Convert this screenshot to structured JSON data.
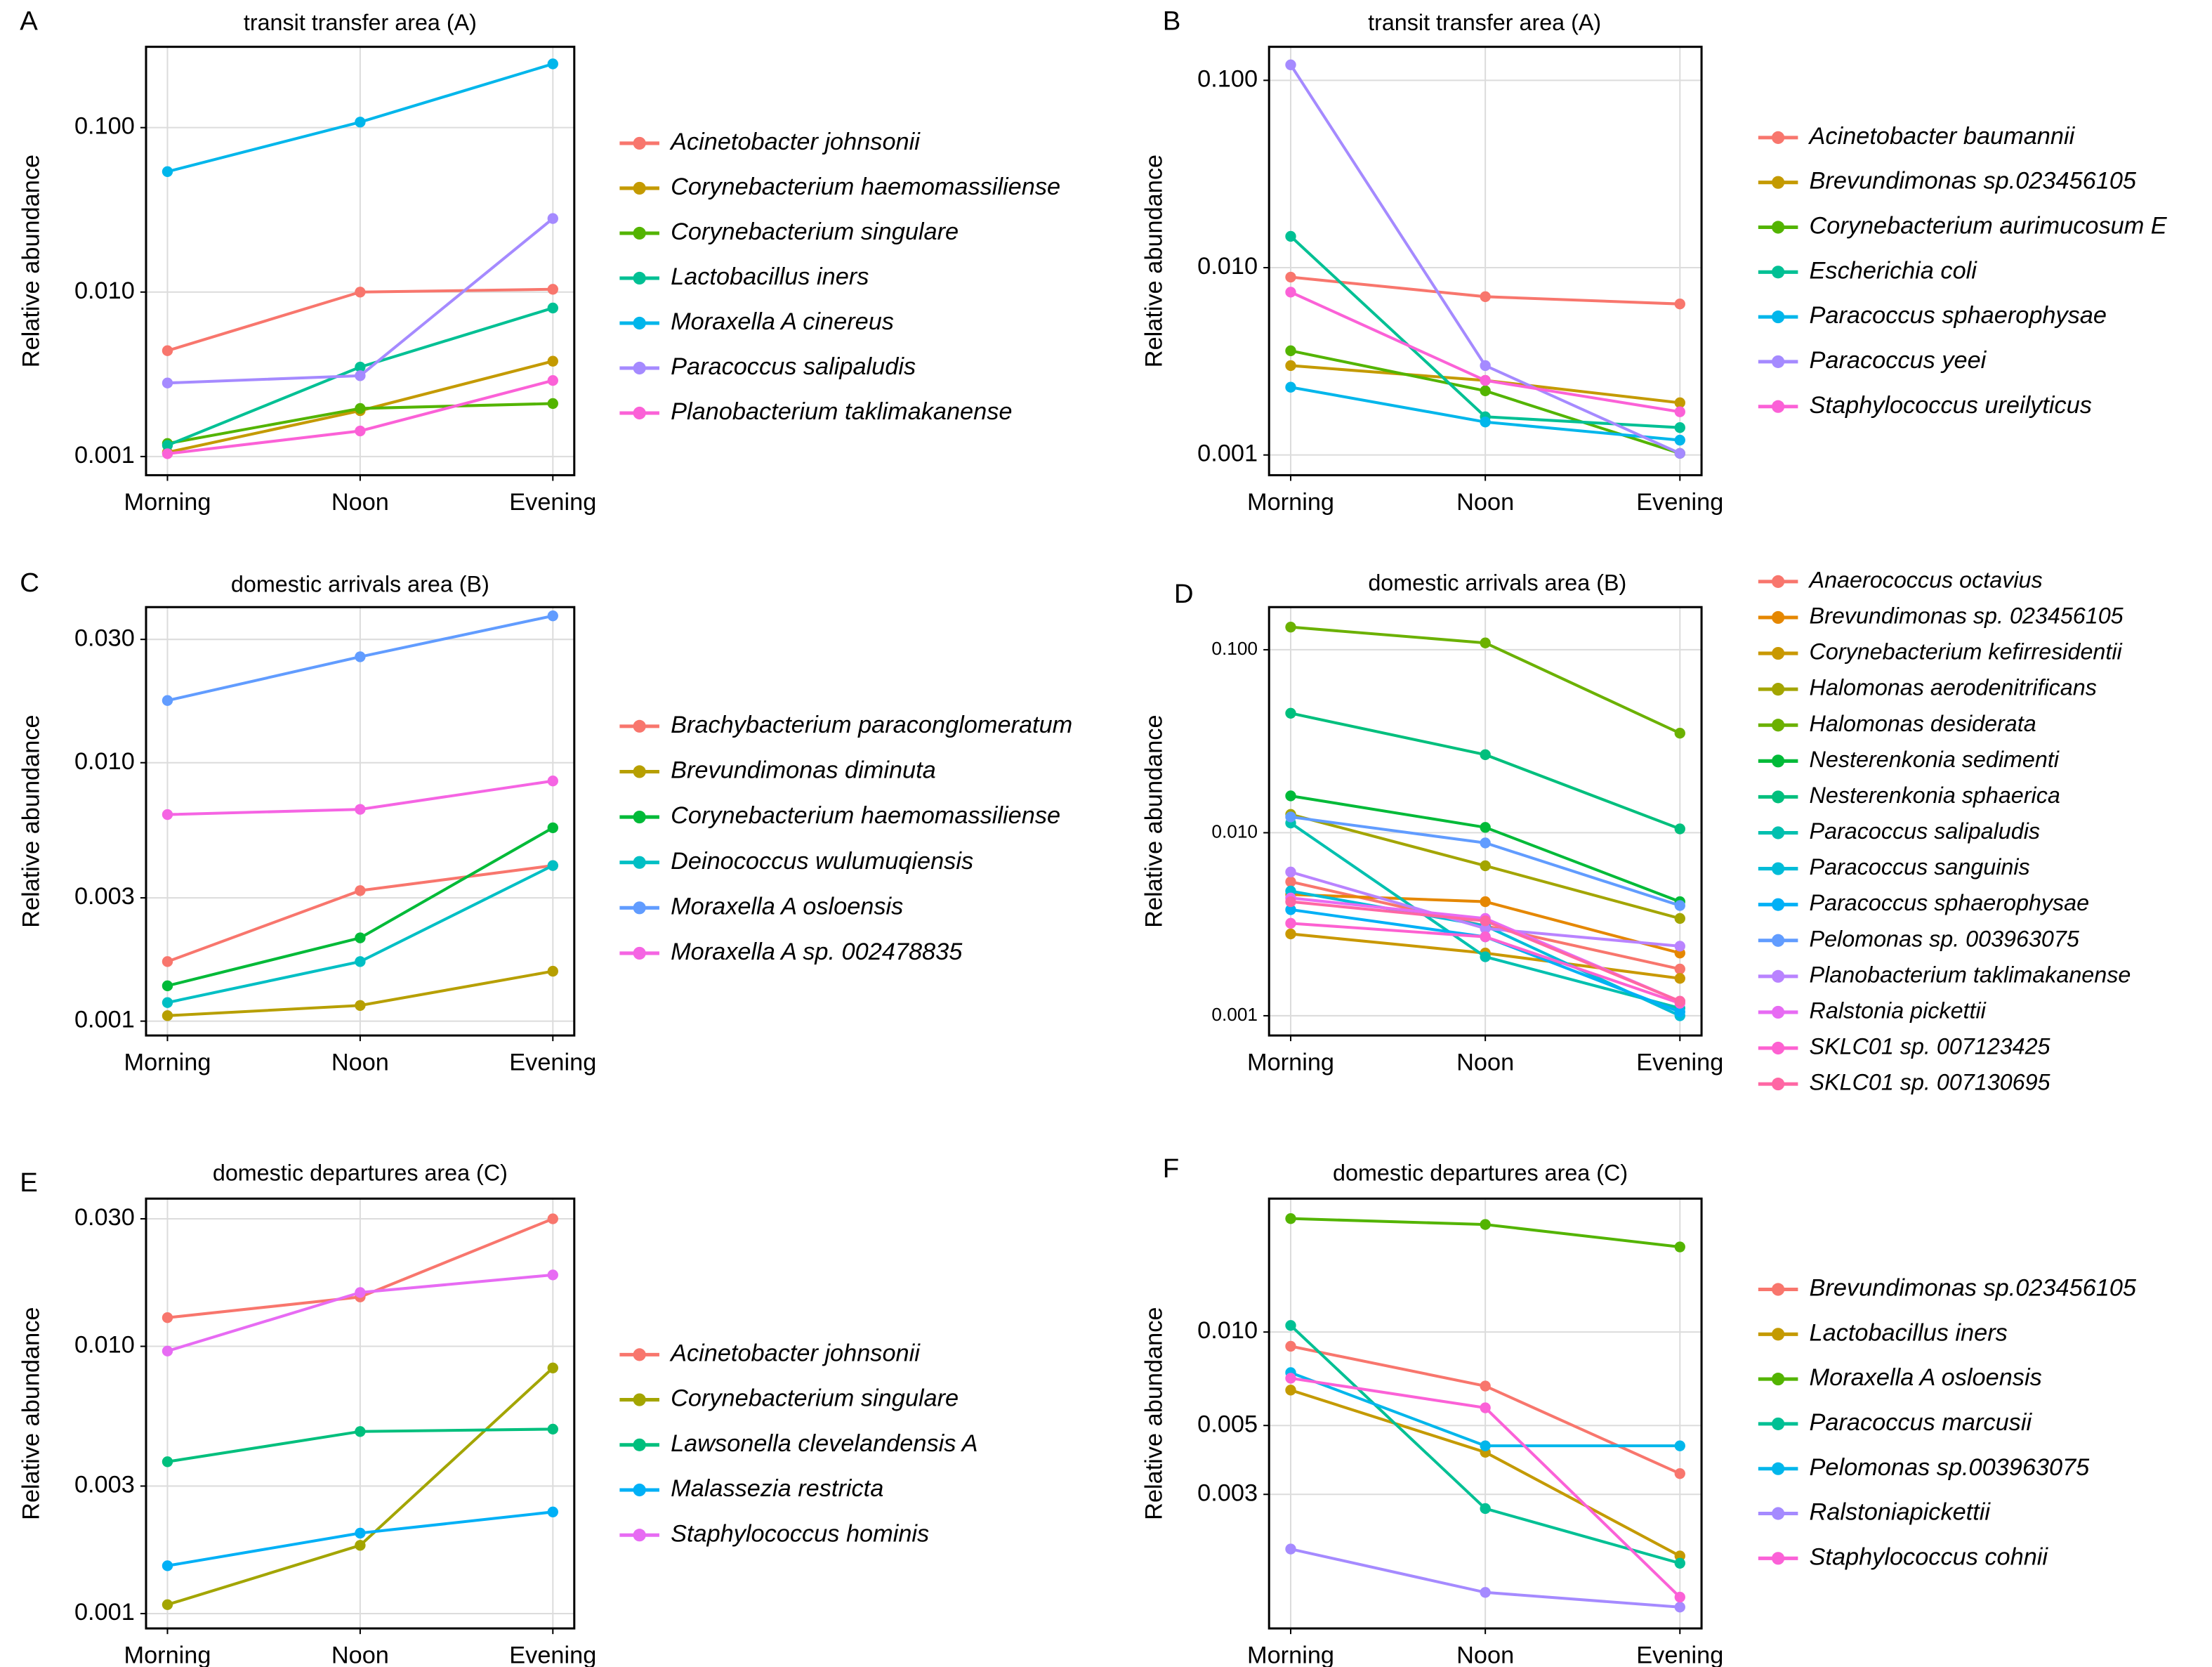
{
  "chart_data": [
    {
      "type": "line",
      "label": "A",
      "title": "transit transfer area (A)",
      "y_label": "Relative abundance",
      "yscale": "log",
      "grid": true,
      "legend": "right",
      "categories": [
        "Morning",
        "Noon",
        "Evening"
      ],
      "ylim": [
        0.00077,
        0.31
      ],
      "yticks": [
        {
          "value": 0.001,
          "label": "0.001"
        },
        {
          "value": 0.01,
          "label": "0.010"
        },
        {
          "value": 0.1,
          "label": "0.100"
        }
      ],
      "series": [
        {
          "name": "Acinetobacter johnsonii",
          "color": "#F8766D",
          "values": [
            0.0044,
            0.01,
            0.0104
          ]
        },
        {
          "name": "Corynebacterium haemomassiliense",
          "color": "#C49A00",
          "values": [
            0.00106,
            0.0019,
            0.0038
          ]
        },
        {
          "name": "Corynebacterium singulare",
          "color": "#53B400",
          "values": [
            0.0012,
            0.00196,
            0.0021
          ]
        },
        {
          "name": "Lactobacillus iners",
          "color": "#00C094",
          "values": [
            0.00117,
            0.0035,
            0.008
          ]
        },
        {
          "name": "Moraxella A cinereus",
          "color": "#00B6EB",
          "values": [
            0.054,
            0.108,
            0.244
          ]
        },
        {
          "name": "Paracoccus salipaludis",
          "color": "#A58AFF",
          "values": [
            0.0028,
            0.0031,
            0.028
          ]
        },
        {
          "name": "Planobacterium taklimakanense",
          "color": "#FB61D7",
          "values": [
            0.00104,
            0.00143,
            0.0029
          ]
        }
      ]
    },
    {
      "type": "line",
      "label": "B",
      "title": "transit transfer area (A)",
      "y_label": "Relative abundance",
      "yscale": "log",
      "grid": true,
      "legend": "right",
      "categories": [
        "Morning",
        "Noon",
        "Evening"
      ],
      "ylim": [
        0.00078,
        0.151
      ],
      "yticks": [
        {
          "value": 0.001,
          "label": "0.001"
        },
        {
          "value": 0.01,
          "label": "0.010"
        },
        {
          "value": 0.1,
          "label": "0.100"
        }
      ],
      "series": [
        {
          "name": "Acinetobacter baumannii",
          "color": "#F8766D",
          "values": [
            0.0089,
            0.007,
            0.0064
          ]
        },
        {
          "name": "Brevundimonas sp.023456105",
          "color": "#C49A00",
          "values": [
            0.003,
            0.0025,
            0.0019
          ]
        },
        {
          "name": "Corynebacterium aurimucosum E",
          "color": "#53B400",
          "values": [
            0.0036,
            0.0022,
            0.00102
          ]
        },
        {
          "name": "Escherichia coli",
          "color": "#00C094",
          "values": [
            0.0147,
            0.0016,
            0.0014
          ]
        },
        {
          "name": "Paracoccus sphaerophysae",
          "color": "#00B6EB",
          "values": [
            0.0023,
            0.0015,
            0.0012
          ]
        },
        {
          "name": "Paracoccus yeei",
          "color": "#A58AFF",
          "values": [
            0.121,
            0.003,
            0.00102
          ]
        },
        {
          "name": "Staphylococcus ureilyticus",
          "color": "#FB61D7",
          "values": [
            0.0074,
            0.0025,
            0.0017
          ]
        }
      ]
    },
    {
      "type": "line",
      "label": "C",
      "title": "domestic arrivals area (B)",
      "y_label": "Relative abundance",
      "yscale": "log",
      "grid": true,
      "legend": "right",
      "categories": [
        "Morning",
        "Noon",
        "Evening"
      ],
      "ylim": [
        0.00088,
        0.04
      ],
      "yticks": [
        0.001,
        0.003,
        {
          "value": 0.01,
          "label": "0.010"
        },
        {
          "value": 0.03,
          "label": "0.030"
        }
      ],
      "series": [
        {
          "name": "Brachybacterium paraconglomeratum",
          "color": "#F8766D",
          "values": [
            0.0017,
            0.0032,
            0.004
          ]
        },
        {
          "name": "Brevundimonas diminuta",
          "color": "#B79F00",
          "values": [
            0.00105,
            0.00115,
            0.00156
          ]
        },
        {
          "name": "Corynebacterium haemomassiliense",
          "color": "#00BA38",
          "values": [
            0.00137,
            0.0021,
            0.0056
          ]
        },
        {
          "name": "Deinococcus wulumuqiensis",
          "color": "#00BFC4",
          "values": [
            0.00118,
            0.0017,
            0.004
          ]
        },
        {
          "name": "Moraxella A osloensis",
          "color": "#619CFF",
          "values": [
            0.0174,
            0.0257,
            0.037
          ]
        },
        {
          "name": "Moraxella A sp. 002478835",
          "color": "#F564E3",
          "values": [
            0.0063,
            0.0066,
            0.0085
          ]
        }
      ]
    },
    {
      "type": "line",
      "label": "D",
      "title": "domestic arrivals area (B)",
      "y_label": "Relative abundance",
      "yscale": "log",
      "grid": true,
      "legend": "right",
      "categories": [
        "Morning",
        "Noon",
        "Evening"
      ],
      "ylim": [
        0.00078,
        0.171
      ],
      "yticks": [
        {
          "value": 0.001,
          "label": "0.001"
        },
        {
          "value": 0.01,
          "label": "0.010"
        },
        {
          "value": 0.1,
          "label": "0.100"
        }
      ],
      "series": [
        {
          "name": "Anaerococcus octavius",
          "color": "#F8766D",
          "values": [
            0.0054,
            0.0031,
            0.0018
          ]
        },
        {
          "name": "Brevundimonas sp. 023456105",
          "color": "#E58700",
          "values": [
            0.0046,
            0.0042,
            0.0022
          ]
        },
        {
          "name": "Corynebacterium kefirresidentii",
          "color": "#C99800",
          "values": [
            0.0028,
            0.0022,
            0.0016
          ]
        },
        {
          "name": "Halomonas aerodenitrificans",
          "color": "#A3A500",
          "values": [
            0.0126,
            0.0066,
            0.0034
          ]
        },
        {
          "name": "Halomonas desiderata",
          "color": "#6BB100",
          "values": [
            0.133,
            0.109,
            0.035
          ]
        },
        {
          "name": "Nesterenkonia sedimenti",
          "color": "#00BA38",
          "values": [
            0.0159,
            0.0107,
            0.0042
          ]
        },
        {
          "name": "Nesterenkonia sphaerica",
          "color": "#00BF7D",
          "values": [
            0.045,
            0.0267,
            0.0105
          ]
        },
        {
          "name": "Paracoccus salipaludis",
          "color": "#00C0AF",
          "values": [
            0.0113,
            0.0021,
            0.0011
          ]
        },
        {
          "name": "Paracoccus sanguinis",
          "color": "#00BCD8",
          "values": [
            0.0048,
            0.0031,
            0.001
          ]
        },
        {
          "name": "Paracoccus sphaerophysae",
          "color": "#00B0F6",
          "values": [
            0.0038,
            0.0027,
            0.00105
          ]
        },
        {
          "name": "Pelomonas sp. 003963075",
          "color": "#619CFF",
          "values": [
            0.0122,
            0.0088,
            0.004
          ]
        },
        {
          "name": "Planobacterium taklimakanense",
          "color": "#B983FF",
          "values": [
            0.0061,
            0.003,
            0.0024
          ]
        },
        {
          "name": "Ralstonia pickettii",
          "color": "#E76BF3",
          "values": [
            0.0044,
            0.0034,
            0.0012
          ]
        },
        {
          "name": "SKLC01 sp. 007123425",
          "color": "#FD61D1",
          "values": [
            0.0032,
            0.0027,
            0.00117
          ]
        },
        {
          "name": "SKLC01 sp. 007130695",
          "color": "#FF67A4",
          "values": [
            0.0042,
            0.0033,
            0.0012
          ]
        }
      ]
    },
    {
      "type": "line",
      "label": "E",
      "title": "domestic departures area (C)",
      "y_label": "Relative abundance",
      "yscale": "log",
      "grid": true,
      "legend": "right",
      "categories": [
        "Morning",
        "Noon",
        "Evening"
      ],
      "ylim": [
        0.00088,
        0.0357
      ],
      "yticks": [
        0.001,
        0.003,
        {
          "value": 0.01,
          "label": "0.010"
        },
        {
          "value": 0.03,
          "label": "0.030"
        }
      ],
      "series": [
        {
          "name": "Acinetobacter johnsonii",
          "color": "#F8766D",
          "values": [
            0.0128,
            0.0153,
            0.03
          ]
        },
        {
          "name": "Corynebacterium singulare",
          "color": "#A3A500",
          "values": [
            0.00108,
            0.0018,
            0.0083
          ]
        },
        {
          "name": "Lawsonella clevelandensis A",
          "color": "#00BF7D",
          "values": [
            0.0037,
            0.0048,
            0.0049
          ]
        },
        {
          "name": "Malassezia restricta",
          "color": "#00B0F6",
          "values": [
            0.00151,
            0.002,
            0.0024
          ]
        },
        {
          "name": "Staphylococcus hominis",
          "color": "#E76BF3",
          "values": [
            0.0096,
            0.0159,
            0.0185
          ]
        }
      ]
    },
    {
      "type": "line",
      "label": "F",
      "title": "domestic departures area (C)",
      "y_label": "Relative abundance",
      "yscale": "log",
      "grid": true,
      "legend": "right",
      "categories": [
        "Morning",
        "Noon",
        "Evening"
      ],
      "ylim": [
        0.00111,
        0.0269
      ],
      "yticks": [
        0.003,
        0.005,
        {
          "value": 0.01,
          "label": "0.010"
        }
      ],
      "series": [
        {
          "name": "Brevundimonas sp.023456105",
          "color": "#F8766D",
          "values": [
            0.009,
            0.0067,
            0.0035
          ]
        },
        {
          "name": "Lactobacillus iners",
          "color": "#C49A00",
          "values": [
            0.0065,
            0.0041,
            0.0019
          ]
        },
        {
          "name": "Moraxella A osloensis",
          "color": "#53B400",
          "values": [
            0.0232,
            0.0222,
            0.0188
          ]
        },
        {
          "name": "Paracoccus marcusii",
          "color": "#00C094",
          "values": [
            0.0105,
            0.0027,
            0.0018
          ]
        },
        {
          "name": "Pelomonas sp.003963075",
          "color": "#00B6EB",
          "values": [
            0.0074,
            0.0043,
            0.0043
          ]
        },
        {
          "name": "Ralstoniapickettii",
          "color": "#A58AFF",
          "values": [
            0.002,
            0.00145,
            0.0013
          ]
        },
        {
          "name": "Staphylococcus cohnii",
          "color": "#FB61D7",
          "values": [
            0.0071,
            0.0057,
            0.0014
          ]
        }
      ]
    }
  ]
}
